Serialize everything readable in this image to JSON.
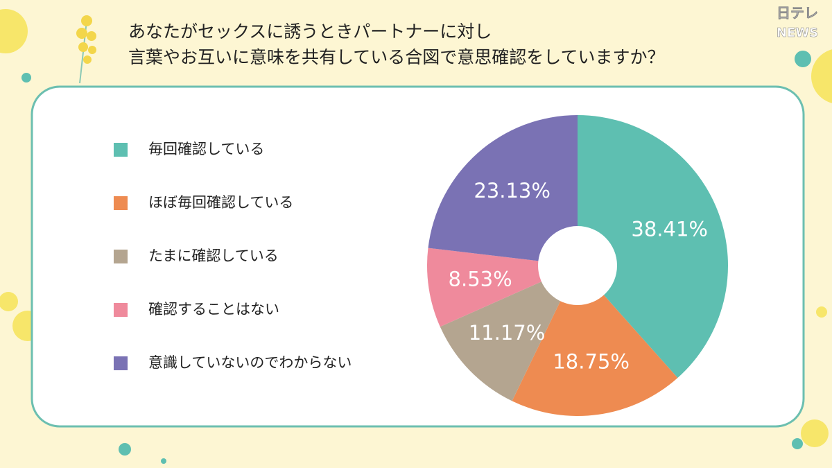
{
  "logo": [
    "日テレ",
    "NEWS"
  ],
  "chart_data": {
    "type": "pie",
    "title": [
      "あなたがセックスに誘うときパートナーに対し",
      "言葉やお互いに意味を共有している合図で意思確認をしていますか？"
    ],
    "categories": [
      "毎回確認している",
      "ほぼ毎回確認している",
      "たまに確認している",
      "確認することはない",
      "意識していないのでわからない"
    ],
    "values": [
      38.41,
      18.75,
      11.17,
      8.53,
      23.13
    ],
    "value_labels": [
      "38.41%",
      "18.75%",
      "11.17%",
      "8.53%",
      "23.13%"
    ],
    "colors": [
      "#5ebfb1",
      "#ee8b51",
      "#b4a590",
      "#ef8a9c",
      "#7a72b4"
    ],
    "donut": true,
    "legend": "left"
  }
}
